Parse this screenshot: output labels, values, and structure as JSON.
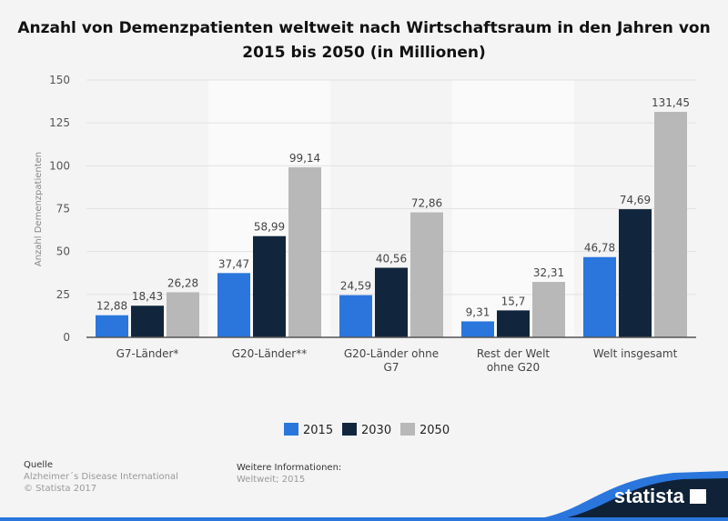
{
  "chart_data": {
    "type": "bar",
    "title": "Anzahl von Demenzpatienten weltweit nach Wirtschaftsraum in den Jahren von 2015 bis 2050 (in Millionen)",
    "ylabel": "Anzahl Demenzpatienten",
    "xlabel": "",
    "ylim": [
      0,
      150
    ],
    "yticks": [
      0,
      25,
      50,
      75,
      100,
      125,
      150
    ],
    "grid": true,
    "legend": "bottom",
    "categories": [
      [
        "G7-Länder*"
      ],
      [
        "G20-Länder**"
      ],
      [
        "G20-Länder ohne",
        "G7"
      ],
      [
        "Rest der Welt",
        "ohne G20"
      ],
      [
        "Welt insgesamt"
      ]
    ],
    "series": [
      {
        "name": "2015",
        "color": "#2a76dd",
        "values": [
          12.88,
          37.47,
          24.59,
          9.31,
          46.78
        ],
        "labels": [
          "12,88",
          "37,47",
          "24,59",
          "9,31",
          "46,78"
        ]
      },
      {
        "name": "2030",
        "color": "#11263d",
        "values": [
          18.43,
          58.99,
          40.56,
          15.7,
          74.69
        ],
        "labels": [
          "18,43",
          "58,99",
          "40,56",
          "15,7",
          "74,69"
        ]
      },
      {
        "name": "2050",
        "color": "#b8b8b8",
        "values": [
          26.28,
          99.14,
          72.86,
          32.31,
          131.45
        ],
        "labels": [
          "26,28",
          "99,14",
          "72,86",
          "32,31",
          "131,45"
        ]
      }
    ]
  },
  "footer": {
    "source_heading": "Quelle",
    "source": "Alzheimer´s Disease International",
    "copyright": "© Statista 2017",
    "info_heading": "Weitere Informationen:",
    "info": "Weltweit; 2015",
    "logo": "statista"
  }
}
